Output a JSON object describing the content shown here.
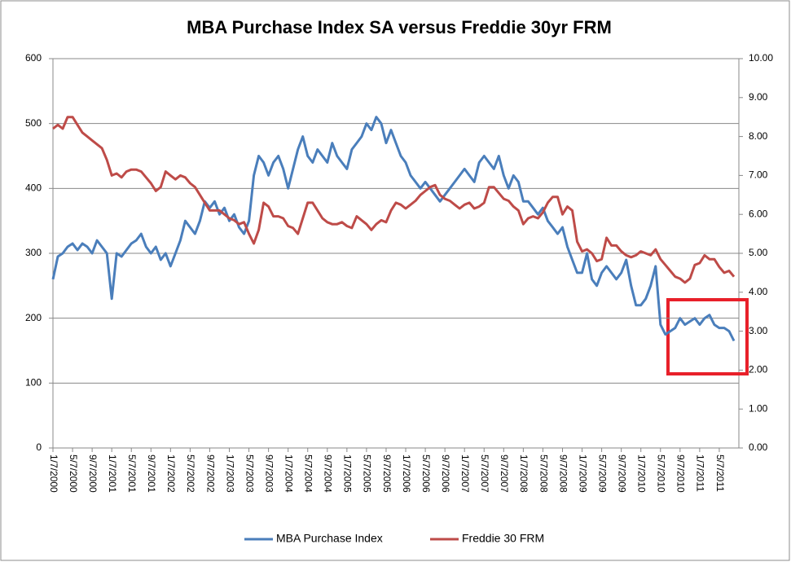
{
  "chart_data": {
    "type": "line",
    "title": "MBA Purchase Index SA versus Freddie 30yr FRM",
    "categories": [
      "1/7/2000",
      null,
      null,
      null,
      "5/7/2000",
      null,
      null,
      null,
      "9/7/2000",
      null,
      null,
      null,
      "1/7/2001",
      null,
      null,
      null,
      "5/7/2001",
      null,
      null,
      null,
      "9/7/2001",
      null,
      null,
      null,
      "1/7/2002",
      null,
      null,
      null,
      "5/7/2002",
      null,
      null,
      null,
      "9/7/2002",
      null,
      null,
      null,
      "1/7/2003",
      null,
      null,
      null,
      "5/7/2003",
      null,
      null,
      null,
      "9/7/2003",
      null,
      null,
      null,
      "1/7/2004",
      null,
      null,
      null,
      "5/7/2004",
      null,
      null,
      null,
      "9/7/2004",
      null,
      null,
      null,
      "1/7/2005",
      null,
      null,
      null,
      "5/7/2005",
      null,
      null,
      null,
      "9/7/2005",
      null,
      null,
      null,
      "1/7/2006",
      null,
      null,
      null,
      "5/7/2006",
      null,
      null,
      null,
      "9/7/2006",
      null,
      null,
      null,
      "1/7/2007",
      null,
      null,
      null,
      "5/7/2007",
      null,
      null,
      null,
      "9/7/2007",
      null,
      null,
      null,
      "1/7/2008",
      null,
      null,
      null,
      "5/7/2008",
      null,
      null,
      null,
      "9/7/2008",
      null,
      null,
      null,
      "1/7/2009",
      null,
      null,
      null,
      "5/7/2009",
      null,
      null,
      null,
      "9/7/2009",
      null,
      null,
      null,
      "1/7/2010",
      null,
      null,
      null,
      "5/7/2010",
      null,
      null,
      null,
      "9/7/2010",
      null,
      null,
      null,
      "1/7/2011",
      null,
      null,
      null,
      "5/7/2011",
      null,
      null,
      null
    ],
    "series": [
      {
        "name": "MBA Purchase Index",
        "color": "#4a7ebb",
        "values": [
          260,
          295,
          300,
          310,
          315,
          305,
          315,
          310,
          300,
          320,
          310,
          300,
          230,
          300,
          295,
          305,
          315,
          320,
          330,
          310,
          300,
          310,
          290,
          300,
          280,
          300,
          320,
          350,
          340,
          330,
          350,
          380,
          370,
          380,
          360,
          370,
          350,
          360,
          340,
          330,
          350,
          420,
          450,
          440,
          420,
          440,
          450,
          430,
          400,
          430,
          460,
          480,
          450,
          440,
          460,
          450,
          440,
          470,
          450,
          440,
          430,
          460,
          470,
          480,
          500,
          490,
          510,
          500,
          470,
          490,
          470,
          450,
          440,
          420,
          410,
          400,
          410,
          400,
          390,
          380,
          390,
          400,
          410,
          420,
          430,
          420,
          410,
          440,
          450,
          440,
          430,
          450,
          420,
          400,
          420,
          410,
          380,
          380,
          370,
          360,
          370,
          350,
          340,
          330,
          340,
          310,
          290,
          270,
          270,
          300,
          260,
          250,
          270,
          280,
          270,
          260,
          270,
          290,
          250,
          220,
          220,
          230,
          250,
          280,
          190,
          175,
          180,
          185,
          200,
          190,
          195,
          200,
          190,
          200,
          205,
          190,
          185,
          185,
          180,
          165
        ]
      },
      {
        "name": "Freddie 30 FRM",
        "color": "#be4b48",
        "axis": "y2",
        "values": [
          8.2,
          8.3,
          8.2,
          8.5,
          8.5,
          8.3,
          8.1,
          8.0,
          7.9,
          7.8,
          7.7,
          7.4,
          7.0,
          7.05,
          6.95,
          7.1,
          7.15,
          7.15,
          7.1,
          6.95,
          6.8,
          6.6,
          6.7,
          7.1,
          7.0,
          6.9,
          7.0,
          6.95,
          6.8,
          6.7,
          6.5,
          6.3,
          6.1,
          6.1,
          6.1,
          6.0,
          5.9,
          5.85,
          5.75,
          5.8,
          5.5,
          5.25,
          5.6,
          6.3,
          6.2,
          5.95,
          5.95,
          5.9,
          5.7,
          5.65,
          5.5,
          5.9,
          6.3,
          6.3,
          6.1,
          5.9,
          5.8,
          5.75,
          5.75,
          5.8,
          5.7,
          5.65,
          5.95,
          5.85,
          5.75,
          5.6,
          5.75,
          5.85,
          5.8,
          6.1,
          6.3,
          6.25,
          6.15,
          6.25,
          6.35,
          6.5,
          6.6,
          6.7,
          6.75,
          6.5,
          6.4,
          6.35,
          6.25,
          6.15,
          6.25,
          6.3,
          6.15,
          6.2,
          6.3,
          6.7,
          6.7,
          6.55,
          6.4,
          6.35,
          6.2,
          6.1,
          5.75,
          5.9,
          5.95,
          5.9,
          6.05,
          6.3,
          6.45,
          6.45,
          6.0,
          6.2,
          6.1,
          5.3,
          5.05,
          5.1,
          5.0,
          4.8,
          4.85,
          5.4,
          5.2,
          5.2,
          5.05,
          4.95,
          4.9,
          4.95,
          5.05,
          5.0,
          4.95,
          5.1,
          4.85,
          4.7,
          4.55,
          4.4,
          4.35,
          4.25,
          4.35,
          4.7,
          4.75,
          4.95,
          4.85,
          4.85,
          4.65,
          4.5,
          4.55,
          4.4
        ]
      }
    ],
    "ylim": [
      0,
      600
    ],
    "yticks": [
      0,
      100,
      200,
      300,
      400,
      500,
      600
    ],
    "y2lim": [
      0,
      10
    ],
    "y2ticks": [
      {
        "value": 0,
        "label": "0.00"
      },
      {
        "value": 1,
        "label": "1.00"
      },
      {
        "value": 2,
        "label": "2.00"
      },
      {
        "value": 3,
        "label": "3.00"
      },
      {
        "value": 4,
        "label": "4.00"
      },
      {
        "value": 5,
        "label": "5.00"
      },
      {
        "value": 6,
        "label": "6.00"
      },
      {
        "value": 7,
        "label": "7.00"
      },
      {
        "value": 8,
        "label": "8.00"
      },
      {
        "value": 9,
        "label": "9.00"
      },
      {
        "value": 10,
        "label": "10.00"
      }
    ],
    "grid": true,
    "legend": "bottom"
  }
}
